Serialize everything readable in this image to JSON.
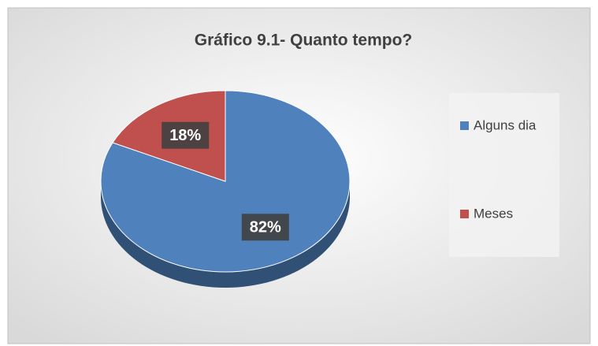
{
  "chart_data": {
    "type": "pie",
    "title": "Gráfico 9.1- Quanto tempo?",
    "categories": [
      "Alguns dia",
      "Meses"
    ],
    "values": [
      82,
      18
    ],
    "value_labels": [
      "82%",
      "18%"
    ],
    "colors": [
      "#4f81bd",
      "#c0504d"
    ],
    "legend": "right"
  }
}
